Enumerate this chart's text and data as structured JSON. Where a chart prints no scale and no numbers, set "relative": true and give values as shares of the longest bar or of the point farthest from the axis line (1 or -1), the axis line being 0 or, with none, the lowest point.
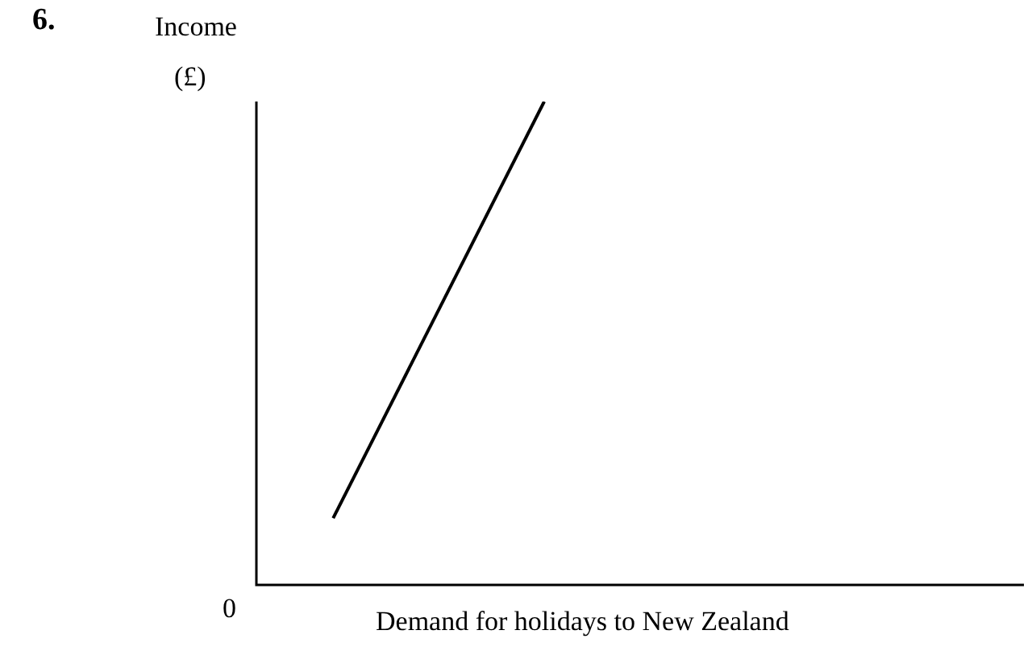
{
  "chart_data": {
    "type": "line",
    "title": "6.",
    "ylabel": "Income\n(£)",
    "xlabel": "Demand for holidays to New Zealand",
    "annotations": [
      "0"
    ],
    "relative": true,
    "categories": [
      null,
      null,
      null,
      null,
      null,
      null,
      null,
      null,
      null,
      null,
      null,
      null,
      null,
      null,
      null,
      null,
      null,
      null,
      null,
      null,
      null,
      null,
      null,
      null,
      null,
      null,
      null,
      null,
      null,
      null,
      null,
      null,
      null,
      null,
      null,
      null,
      null,
      null,
      null,
      null,
      null
    ],
    "tick_labels": false,
    "series": [
      {
        "color": "#000000",
        "values": [
          null,
          null,
          null,
          null,
          0.138,
          null,
          null,
          null,
          null,
          null,
          null,
          null,
          null,
          null,
          null,
          1,
          null,
          null,
          null,
          null,
          null,
          null,
          null,
          null,
          null,
          null,
          null,
          null,
          null,
          null,
          null,
          null,
          null,
          null,
          null,
          null,
          null,
          null,
          null,
          null,
          null
        ]
      }
    ],
    "legend": false,
    "marker": "none",
    "line_style": "solid"
  }
}
